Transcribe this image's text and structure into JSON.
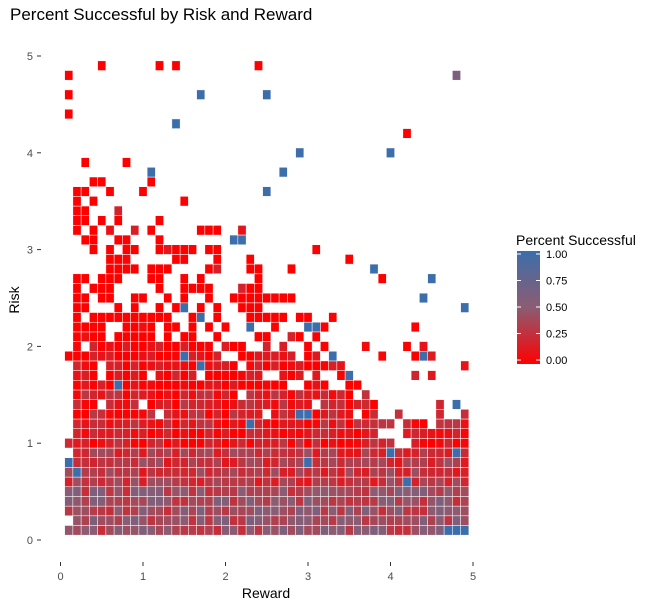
{
  "chart_data": {
    "type": "heatmap",
    "title": "Percent Successful by Risk and Reward",
    "xlabel": "Reward",
    "ylabel": "Risk",
    "xlim": [
      0,
      5
    ],
    "ylim": [
      0,
      5
    ],
    "x_ticks": [
      "0",
      "1",
      "2",
      "3",
      "4",
      "5"
    ],
    "y_ticks": [
      "0",
      "1",
      "2",
      "3",
      "4",
      "5"
    ],
    "cell_size": 0.1,
    "grid": false,
    "legend": {
      "title": "Percent Successful",
      "placement": "right",
      "ticks": [
        "1.00",
        "0.75",
        "0.50",
        "0.25",
        "0.00"
      ],
      "color_low": "#FF0000",
      "color_mid": "#8C5C72",
      "color_high": "#3C6EAB"
    },
    "sample_cells": [
      {
        "x": 0.1,
        "y": 0.8,
        "value": 1.0
      },
      {
        "x": 0.5,
        "y": 4.9,
        "value": 0.0
      },
      {
        "x": 1.2,
        "y": 4.9,
        "value": 0.0
      },
      {
        "x": 1.4,
        "y": 4.9,
        "value": 0.0
      },
      {
        "x": 2.4,
        "y": 4.9,
        "value": 0.0
      },
      {
        "x": 4.8,
        "y": 4.8,
        "value": 0.6
      },
      {
        "x": 1.7,
        "y": 4.6,
        "value": 1.0
      },
      {
        "x": 2.5,
        "y": 4.6,
        "value": 1.0
      },
      {
        "x": 0.1,
        "y": 4.4,
        "value": 0.0
      },
      {
        "x": 1.4,
        "y": 4.3,
        "value": 1.0
      },
      {
        "x": 4.2,
        "y": 4.2,
        "value": 0.0
      },
      {
        "x": 4.0,
        "y": 4.0,
        "value": 1.0
      },
      {
        "x": 2.9,
        "y": 4.0,
        "value": 1.0
      },
      {
        "x": 1.1,
        "y": 3.8,
        "value": 1.0
      },
      {
        "x": 2.5,
        "y": 3.6,
        "value": 1.0
      },
      {
        "x": 2.7,
        "y": 3.8,
        "value": 1.0
      },
      {
        "x": 2.1,
        "y": 3.1,
        "value": 1.0
      },
      {
        "x": 2.2,
        "y": 3.1,
        "value": 1.0
      },
      {
        "x": 3.8,
        "y": 2.8,
        "value": 1.0
      },
      {
        "x": 4.4,
        "y": 2.5,
        "value": 1.0
      },
      {
        "x": 4.5,
        "y": 2.7,
        "value": 1.0
      },
      {
        "x": 4.9,
        "y": 2.4,
        "value": 1.0
      },
      {
        "x": 3.0,
        "y": 2.2,
        "value": 1.0
      },
      {
        "x": 3.1,
        "y": 2.2,
        "value": 1.0
      },
      {
        "x": 2.3,
        "y": 2.2,
        "value": 1.0
      },
      {
        "x": 1.5,
        "y": 1.9,
        "value": 1.0
      },
      {
        "x": 3.3,
        "y": 1.9,
        "value": 1.0
      },
      {
        "x": 4.4,
        "y": 1.9,
        "value": 1.0
      },
      {
        "x": 0.7,
        "y": 1.6,
        "value": 1.0
      },
      {
        "x": 3.5,
        "y": 1.7,
        "value": 1.0
      },
      {
        "x": 4.8,
        "y": 1.4,
        "value": 1.0
      },
      {
        "x": 2.9,
        "y": 1.3,
        "value": 1.0
      },
      {
        "x": 4.0,
        "y": 0.9,
        "value": 1.0
      },
      {
        "x": 4.8,
        "y": 0.9,
        "value": 1.0
      },
      {
        "x": 4.2,
        "y": 0.6,
        "value": 1.0
      },
      {
        "x": 4.7,
        "y": 0.1,
        "value": 1.0
      },
      {
        "x": 4.8,
        "y": 0.1,
        "value": 1.0
      },
      {
        "x": 4.9,
        "y": 0.1,
        "value": 1.0
      }
    ]
  }
}
